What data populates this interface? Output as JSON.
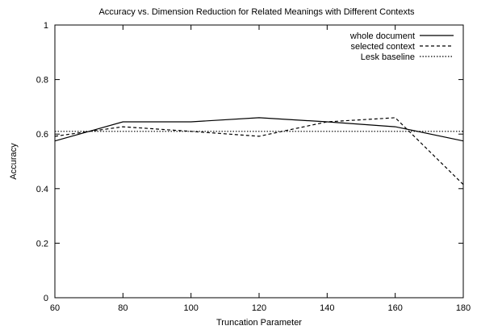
{
  "chart_data": {
    "type": "line",
    "title": "Accuracy vs. Dimension Reduction for Related Meanings with Different Contexts",
    "xlabel": "Truncation Parameter",
    "ylabel": "Accuracy",
    "xlim": [
      60,
      180
    ],
    "ylim": [
      0,
      1
    ],
    "xticks": [
      "60",
      "80",
      "100",
      "120",
      "140",
      "160",
      "180"
    ],
    "yticks": [
      "0",
      "0.2",
      "0.4",
      "0.6",
      "0.8",
      "1"
    ],
    "grid": false,
    "legend_position": "top-right",
    "series": [
      {
        "name": "whole document",
        "style": "solid",
        "x": [
          60,
          80,
          100,
          120,
          140,
          160,
          180
        ],
        "y": [
          0.575,
          0.645,
          0.645,
          0.66,
          0.645,
          0.627,
          0.575
        ]
      },
      {
        "name": "selected context",
        "style": "dashed",
        "x": [
          60,
          80,
          100,
          120,
          140,
          160,
          180
        ],
        "y": [
          0.592,
          0.627,
          0.61,
          0.592,
          0.645,
          0.66,
          0.415
        ]
      },
      {
        "name": "Lesk baseline",
        "style": "dotted",
        "x": [
          60,
          180
        ],
        "y": [
          0.61,
          0.61
        ]
      }
    ]
  }
}
